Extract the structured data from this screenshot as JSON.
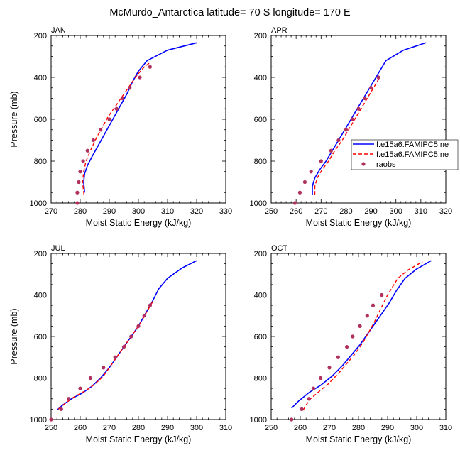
{
  "figure": {
    "title": "McMurdo_Antarctica  latitude= 70 S longitude= 170 E"
  },
  "legend": {
    "entries": [
      {
        "label": "f.e15a6.FAMIPC5.ne",
        "style": "solid",
        "color": "#0000ff"
      },
      {
        "label": "f.e15a6.FAMIPC5.ne",
        "style": "dashed",
        "color": "#ff0000"
      },
      {
        "label": "raobs",
        "style": "marker",
        "color": "#b03060"
      }
    ]
  },
  "chart_data": [
    {
      "type": "line",
      "panel": "JAN",
      "xlabel": "Moist Static Energy (kJ/kg)",
      "ylabel": "Pressure (mb)",
      "xlim": [
        270,
        330
      ],
      "ylim": [
        1000,
        200
      ],
      "xticks": [
        270,
        280,
        290,
        300,
        310,
        320,
        330
      ],
      "yticks": [
        200,
        400,
        600,
        800,
        1000
      ],
      "series": [
        {
          "style": "solid",
          "color": "#0000ff",
          "points": [
            [
              281.5,
              950
            ],
            [
              281.2,
              900
            ],
            [
              281.5,
              860
            ],
            [
              282.5,
              820
            ],
            [
              284,
              780
            ],
            [
              286,
              730
            ],
            [
              288,
              680
            ],
            [
              290,
              630
            ],
            [
              292,
              580
            ],
            [
              294,
              530
            ],
            [
              296,
              480
            ],
            [
              298,
              420
            ],
            [
              300,
              370
            ],
            [
              303,
              320
            ],
            [
              310,
              270
            ],
            [
              320,
              235
            ]
          ]
        },
        {
          "style": "dashed",
          "color": "#ff0000",
          "points": [
            [
              281.3,
              960
            ],
            [
              280.8,
              900
            ],
            [
              281.2,
              850
            ],
            [
              282,
              800
            ],
            [
              283.5,
              750
            ],
            [
              285.5,
              690
            ],
            [
              287.5,
              640
            ],
            [
              289.5,
              590
            ],
            [
              292,
              540
            ],
            [
              294.5,
              490
            ],
            [
              297,
              440
            ],
            [
              299.5,
              390
            ],
            [
              302,
              350
            ],
            [
              304,
              330
            ]
          ]
        },
        {
          "style": "marker",
          "color": "#b03060",
          "points": [
            [
              279,
              1000
            ],
            [
              279,
              950
            ],
            [
              279.5,
              900
            ],
            [
              280,
              850
            ],
            [
              281,
              800
            ],
            [
              282.5,
              750
            ],
            [
              284.5,
              700
            ],
            [
              287,
              650
            ],
            [
              290,
              600
            ],
            [
              292.5,
              550
            ],
            [
              294.5,
              500
            ],
            [
              297,
              450
            ],
            [
              300.5,
              400
            ],
            [
              304,
              350
            ]
          ]
        }
      ]
    },
    {
      "type": "line",
      "panel": "APR",
      "xlabel": "Moist Static Energy (kJ/kg)",
      "ylabel": "",
      "xlim": [
        250,
        320
      ],
      "ylim": [
        1000,
        200
      ],
      "xticks": [
        250,
        260,
        270,
        280,
        290,
        300,
        310,
        320
      ],
      "yticks": [
        200,
        400,
        600,
        800,
        1000
      ],
      "series": [
        {
          "style": "solid",
          "color": "#0000ff",
          "points": [
            [
              266.5,
              960
            ],
            [
              266.5,
              920
            ],
            [
              267.5,
              880
            ],
            [
              269.5,
              840
            ],
            [
              272,
              800
            ],
            [
              274.5,
              750
            ],
            [
              277,
              700
            ],
            [
              279.5,
              650
            ],
            [
              282,
              600
            ],
            [
              284.5,
              550
            ],
            [
              287,
              500
            ],
            [
              289.5,
              450
            ],
            [
              292,
              400
            ],
            [
              296,
              320
            ],
            [
              303,
              270
            ],
            [
              312,
              235
            ]
          ]
        },
        {
          "style": "dashed",
          "color": "#ff0000",
          "points": [
            [
              267.5,
              960
            ],
            [
              267.5,
              920
            ],
            [
              268.5,
              880
            ],
            [
              270.5,
              840
            ],
            [
              273,
              800
            ],
            [
              275.5,
              750
            ],
            [
              278.5,
              700
            ],
            [
              281,
              650
            ],
            [
              283.5,
              600
            ],
            [
              286,
              550
            ],
            [
              288.5,
              500
            ],
            [
              291,
              450
            ],
            [
              293.5,
              400
            ]
          ]
        },
        {
          "style": "marker",
          "color": "#b03060",
          "points": [
            [
              259.5,
              1000
            ],
            [
              261.5,
              950
            ],
            [
              263.5,
              900
            ],
            [
              266,
              850
            ],
            [
              270,
              800
            ],
            [
              274,
              750
            ],
            [
              277,
              700
            ],
            [
              280,
              650
            ],
            [
              282.5,
              600
            ],
            [
              285,
              550
            ],
            [
              287.5,
              500
            ],
            [
              290,
              450
            ],
            [
              293,
              400
            ]
          ]
        }
      ]
    },
    {
      "type": "line",
      "panel": "JUL",
      "xlabel": "Moist Static Energy (kJ/kg)",
      "ylabel": "Pressure (mb)",
      "xlim": [
        250,
        310
      ],
      "ylim": [
        1000,
        200
      ],
      "xticks": [
        250,
        260,
        270,
        280,
        290,
        300,
        310
      ],
      "yticks": [
        200,
        400,
        600,
        800,
        1000
      ],
      "series": [
        {
          "style": "solid",
          "color": "#0000ff",
          "points": [
            [
              252,
              955
            ],
            [
              254,
              930
            ],
            [
              257,
              900
            ],
            [
              261,
              870
            ],
            [
              264,
              840
            ],
            [
              267,
              800
            ],
            [
              270,
              750
            ],
            [
              272.5,
              700
            ],
            [
              275,
              650
            ],
            [
              277.5,
              600
            ],
            [
              280,
              550
            ],
            [
              282,
              500
            ],
            [
              284.5,
              440
            ],
            [
              287,
              370
            ],
            [
              290,
              320
            ],
            [
              295,
              270
            ],
            [
              300,
              235
            ]
          ]
        },
        {
          "style": "dashed",
          "color": "#ff0000",
          "points": [
            [
              252.5,
              950
            ],
            [
              255,
              920
            ],
            [
              258,
              890
            ],
            [
              262,
              860
            ],
            [
              265,
              830
            ],
            [
              268,
              790
            ],
            [
              270.5,
              740
            ],
            [
              273,
              690
            ],
            [
              275.5,
              640
            ],
            [
              278,
              590
            ],
            [
              280.5,
              540
            ],
            [
              282.5,
              490
            ],
            [
              285,
              430
            ]
          ]
        },
        {
          "style": "marker",
          "color": "#b03060",
          "points": [
            [
              250,
              1000
            ],
            [
              253.5,
              950
            ],
            [
              256,
              900
            ],
            [
              260,
              850
            ],
            [
              263.5,
              800
            ],
            [
              268,
              750
            ],
            [
              272,
              700
            ],
            [
              275,
              650
            ],
            [
              277.5,
              600
            ],
            [
              280,
              550
            ],
            [
              282,
              500
            ],
            [
              284,
              450
            ]
          ]
        }
      ]
    },
    {
      "type": "line",
      "panel": "OCT",
      "xlabel": "Moist Static Energy (kJ/kg)",
      "ylabel": "",
      "xlim": [
        250,
        310
      ],
      "ylim": [
        1000,
        200
      ],
      "xticks": [
        250,
        260,
        270,
        280,
        290,
        300,
        310
      ],
      "yticks": [
        200,
        400,
        600,
        800,
        1000
      ],
      "series": [
        {
          "style": "solid",
          "color": "#0000ff",
          "points": [
            [
              257,
              945
            ],
            [
              259.5,
              910
            ],
            [
              263,
              870
            ],
            [
              267,
              835
            ],
            [
              271,
              790
            ],
            [
              274.5,
              740
            ],
            [
              277.5,
              690
            ],
            [
              280.5,
              640
            ],
            [
              283,
              590
            ],
            [
              285.5,
              540
            ],
            [
              288,
              490
            ],
            [
              290.5,
              440
            ],
            [
              293,
              380
            ],
            [
              296,
              320
            ],
            [
              300,
              275
            ],
            [
              305,
              235
            ]
          ]
        },
        {
          "style": "dashed",
          "color": "#ff0000",
          "points": [
            [
              261,
              955
            ],
            [
              262,
              930
            ],
            [
              263.5,
              900
            ],
            [
              266,
              870
            ],
            [
              269.5,
              830
            ],
            [
              273,
              780
            ],
            [
              276,
              730
            ],
            [
              279,
              680
            ],
            [
              281.5,
              630
            ],
            [
              283.5,
              580
            ],
            [
              285.5,
              530
            ],
            [
              287.5,
              470
            ],
            [
              290,
              400
            ],
            [
              293.5,
              320
            ],
            [
              297,
              280
            ],
            [
              302,
              240
            ]
          ]
        },
        {
          "style": "marker",
          "color": "#b03060",
          "points": [
            [
              257,
              1000
            ],
            [
              260.5,
              950
            ],
            [
              263,
              900
            ],
            [
              264.5,
              850
            ],
            [
              267,
              800
            ],
            [
              270,
              750
            ],
            [
              273,
              700
            ],
            [
              276,
              650
            ],
            [
              278,
              600
            ],
            [
              280.5,
              550
            ],
            [
              283,
              500
            ],
            [
              285,
              450
            ],
            [
              288,
              400
            ]
          ]
        }
      ]
    }
  ]
}
